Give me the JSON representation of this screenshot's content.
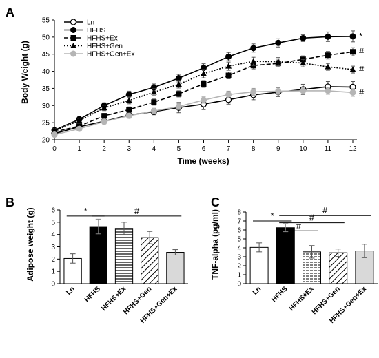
{
  "chart_data": [
    {
      "panel": "A",
      "type": "line",
      "xlabel": "Time (weeks)",
      "ylabel": "Body Weight (g)",
      "xlim": [
        0,
        12
      ],
      "ylim": [
        20,
        55
      ],
      "x_ticks": [
        0,
        1,
        2,
        3,
        4,
        5,
        6,
        7,
        8,
        9,
        10,
        11,
        12
      ],
      "y_ticks": [
        20,
        25,
        30,
        35,
        40,
        45,
        50,
        55
      ],
      "x": [
        0,
        1,
        2,
        3,
        4,
        5,
        6,
        7,
        8,
        9,
        10,
        11,
        12
      ],
      "series": [
        {
          "name": "Ln",
          "style": "solid",
          "marker": "open-circle",
          "color": "#000000",
          "values": [
            21.8,
            23.8,
            25.4,
            27.2,
            28.2,
            29.4,
            30.4,
            31.7,
            33.1,
            33.9,
            34.7,
            35.5,
            35.4
          ],
          "errors": [
            0.5,
            0.6,
            0.6,
            0.8,
            0.9,
            1.5,
            1.6,
            1.3,
            1.4,
            1.3,
            1.5,
            1.5,
            1.6
          ]
        },
        {
          "name": "HFHS",
          "style": "solid",
          "marker": "filled-circle",
          "color": "#000000",
          "values": [
            22.8,
            26.0,
            30.0,
            33.2,
            35.3,
            38.0,
            41.0,
            44.3,
            46.8,
            48.3,
            49.7,
            50.1,
            50.2
          ],
          "errors": [
            0.6,
            0.7,
            0.8,
            1.0,
            1.0,
            1.1,
            1.2,
            1.2,
            1.2,
            1.2,
            1.0,
            1.4,
            1.6
          ]
        },
        {
          "name": "HFHS+Ex",
          "style": "dashed",
          "marker": "filled-square",
          "color": "#000000",
          "values": [
            22.3,
            24.0,
            27.0,
            28.8,
            31.0,
            33.4,
            36.3,
            38.8,
            41.7,
            42.3,
            43.5,
            44.7,
            45.7
          ],
          "errors": [
            0.5,
            0.6,
            0.7,
            0.8,
            0.9,
            0.9,
            1.0,
            1.0,
            1.0,
            1.0,
            1.0,
            1.1,
            1.2
          ]
        },
        {
          "name": "HFHS+Gen",
          "style": "dotted",
          "marker": "filled-triangle",
          "color": "#000000",
          "values": [
            22.6,
            25.6,
            29.3,
            31.5,
            33.9,
            36.2,
            39.3,
            41.5,
            42.9,
            42.8,
            42.4,
            41.3,
            40.5
          ],
          "errors": [
            0.6,
            0.7,
            0.8,
            1.0,
            1.0,
            1.1,
            1.2,
            1.2,
            1.2,
            1.2,
            1.1,
            1.0,
            1.0
          ]
        },
        {
          "name": "HFHS+Gen+Ex",
          "style": "solid",
          "marker": "filled-circle",
          "color": "#b5b5b5",
          "values": [
            21.5,
            23.2,
            25.3,
            27.0,
            28.4,
            29.7,
            31.6,
            33.2,
            34.0,
            34.2,
            34.3,
            34.3,
            33.8
          ],
          "errors": [
            0.5,
            0.6,
            0.7,
            0.7,
            0.8,
            0.9,
            0.9,
            1.0,
            1.0,
            1.0,
            1.0,
            1.0,
            1.1
          ]
        }
      ],
      "legend_position": "top-left",
      "annotations": [
        {
          "text": "*",
          "series": "HFHS"
        },
        {
          "text": "#",
          "series": "HFHS+Ex"
        },
        {
          "text": "#",
          "series": "HFHS+Gen"
        },
        {
          "text": "#",
          "series": "HFHS+Gen+Ex"
        }
      ]
    },
    {
      "panel": "B",
      "type": "bar",
      "ylabel": "Adipose weight (g)",
      "ylim": [
        0,
        6
      ],
      "y_ticks": [
        0,
        1,
        2,
        3,
        4,
        5,
        6
      ],
      "categories": [
        "Ln",
        "HFHS",
        "HFHS+Ex",
        "HFHS+Gen",
        "HFHS+Gen+Ex"
      ],
      "values": [
        2.05,
        4.65,
        4.5,
        3.75,
        2.55
      ],
      "errors": [
        0.38,
        0.6,
        0.5,
        0.5,
        0.22
      ],
      "fills": [
        "white",
        "black",
        "horizontal-lines",
        "diagonal-lines",
        "light-gray"
      ],
      "significance": [
        {
          "text": "*",
          "from": 0,
          "to": 1,
          "y": 5.5
        },
        {
          "text": "#",
          "from": 1,
          "to": 4,
          "y": 5.5
        }
      ]
    },
    {
      "panel": "C",
      "type": "bar",
      "ylabel": "TNF-alpha (pg/ml)",
      "ylim": [
        0,
        8
      ],
      "y_ticks": [
        0,
        1,
        2,
        3,
        4,
        5,
        6,
        7,
        8
      ],
      "categories": [
        "Ln",
        "HFHS",
        "HFHS+Ex",
        "HFHS+Gen",
        "HFHS+Gen+Ex"
      ],
      "values": [
        4.05,
        6.25,
        3.55,
        3.45,
        3.65
      ],
      "errors": [
        0.5,
        0.45,
        0.7,
        0.42,
        0.75
      ],
      "fills": [
        "white",
        "black",
        "horizontal-dashes",
        "diagonal-lines",
        "light-gray"
      ],
      "significance": [
        {
          "text": "*",
          "from": 0,
          "to": 1,
          "y": 7.0
        },
        {
          "text": "#",
          "from": 1,
          "to": 2,
          "y": 5.9
        },
        {
          "text": "#",
          "from": 1,
          "to": 3,
          "y": 6.8
        },
        {
          "text": "#",
          "from": 1,
          "to": 4,
          "y": 7.6
        }
      ]
    }
  ]
}
